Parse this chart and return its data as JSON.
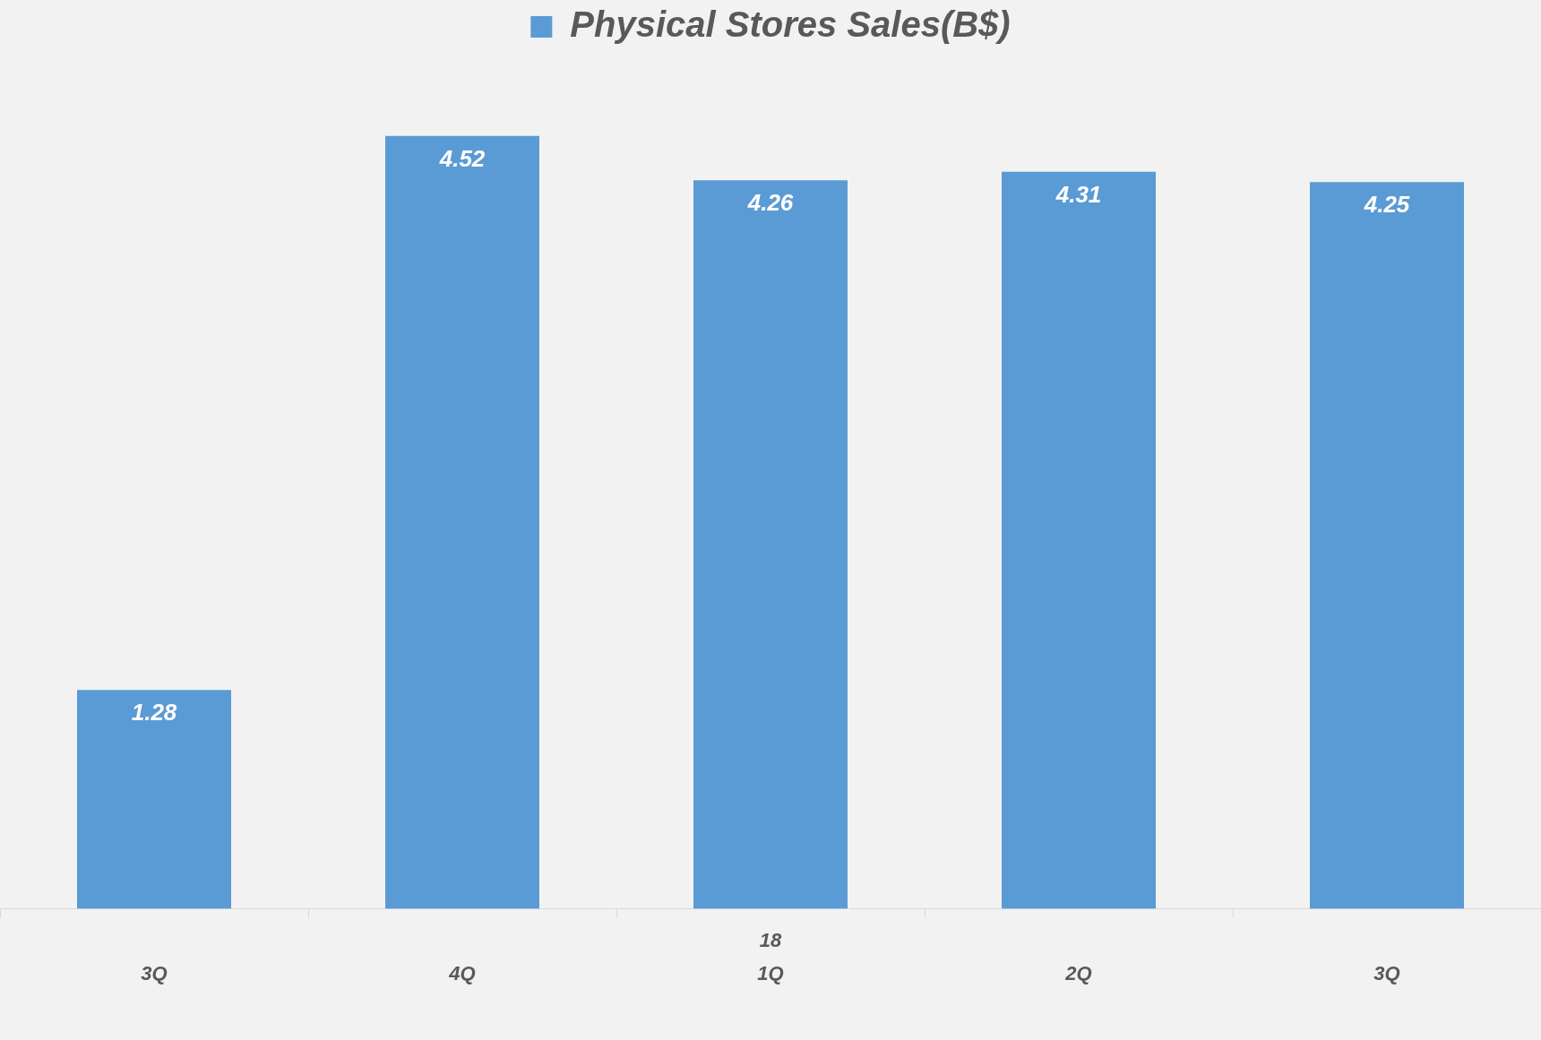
{
  "chart_data": {
    "type": "bar",
    "series": [
      {
        "name": "Physical Stores Sales(B$)",
        "color": "#5b9bd5",
        "values": [
          1.28,
          4.52,
          4.26,
          4.31,
          4.25
        ]
      }
    ],
    "categories": [
      "3Q",
      "4Q",
      "1Q",
      "2Q",
      "3Q"
    ],
    "annotations": [
      "18"
    ],
    "data_labels": true,
    "legend": "top",
    "grid": false
  }
}
